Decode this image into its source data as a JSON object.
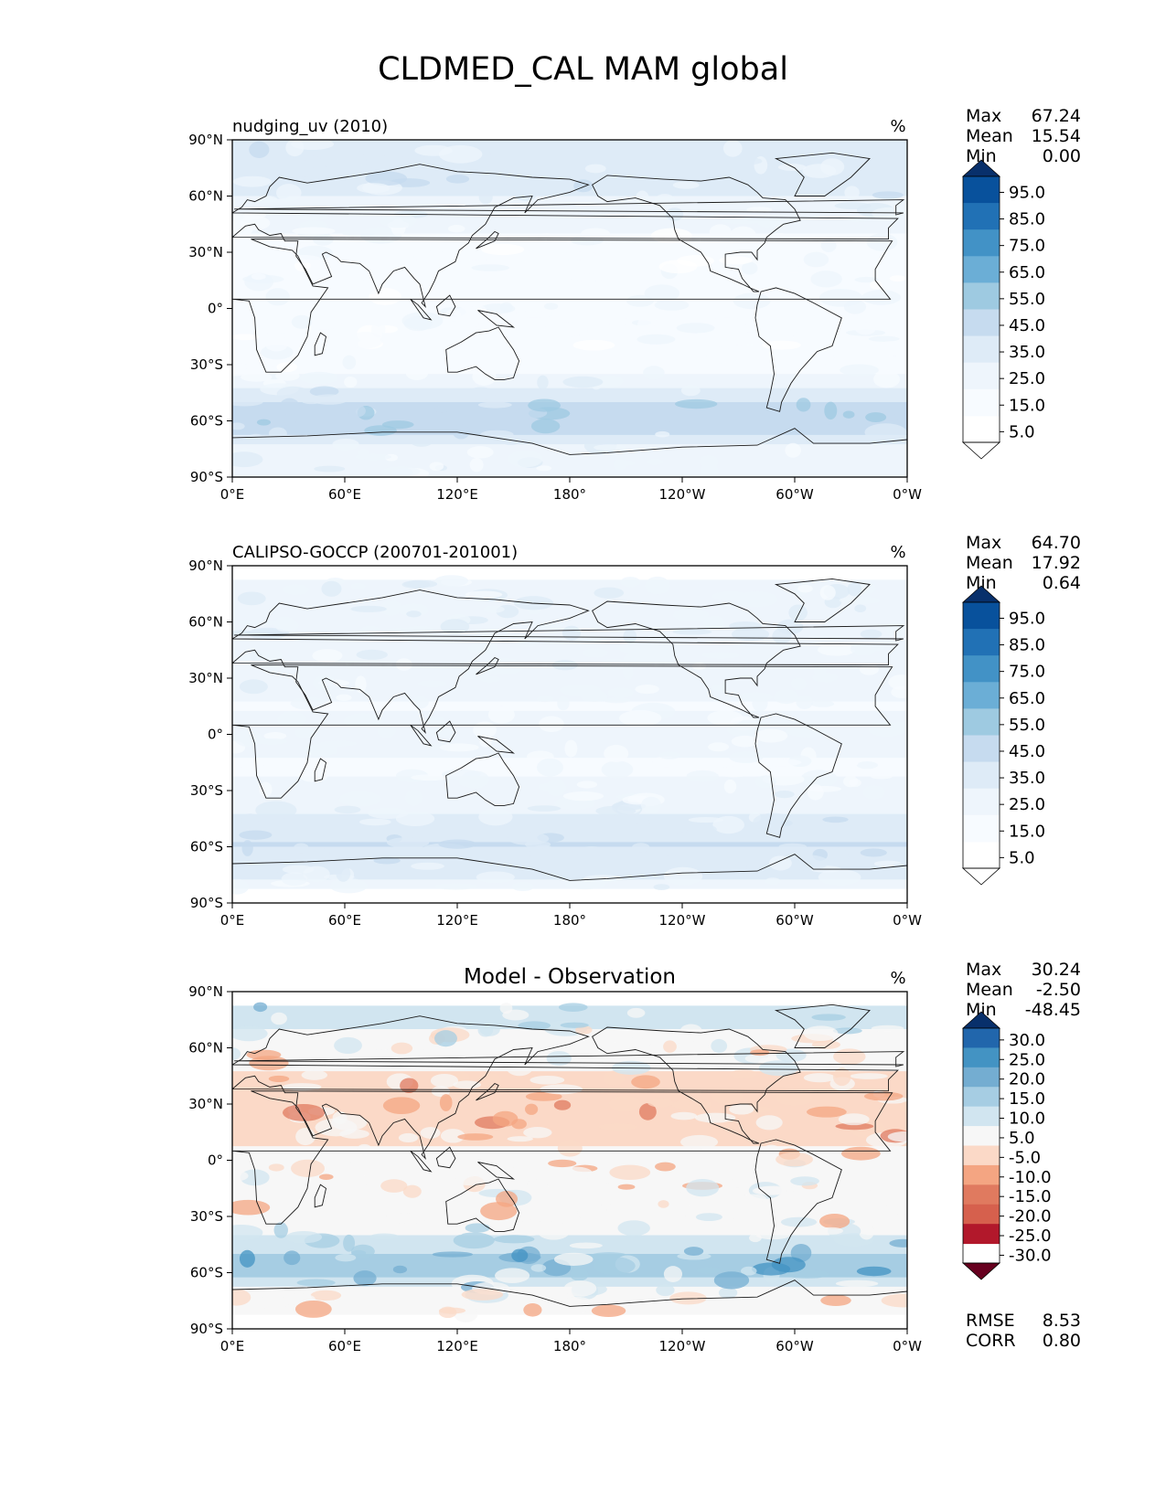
{
  "figure": {
    "title": "CLDMED_CAL MAM global"
  },
  "chart_data": [
    {
      "type": "heatmap",
      "title": "nudging_uv (2010)",
      "units": "%",
      "xlabel": "",
      "ylabel": "",
      "x_tick_labels": [
        "0°E",
        "60°E",
        "120°E",
        "180°",
        "120°W",
        "60°W",
        "0°W"
      ],
      "y_tick_labels": [
        "90°N",
        "60°N",
        "30°N",
        "0°",
        "30°S",
        "60°S",
        "90°S"
      ],
      "xlim": [
        0,
        360
      ],
      "ylim": [
        -90,
        90
      ],
      "stats": [
        {
          "label": "Max",
          "value": "67.24"
        },
        {
          "label": "Mean",
          "value": "15.54"
        },
        {
          "label": "Min",
          "value": "0.00"
        }
      ],
      "colorbar": {
        "levels": [
          "95.0",
          "85.0",
          "75.0",
          "65.0",
          "55.0",
          "45.0",
          "35.0",
          "25.0",
          "15.0",
          "5.0"
        ],
        "colors": [
          "#08306b",
          "#08519c",
          "#2171b5",
          "#4292c6",
          "#6baed6",
          "#9ecae1",
          "#c6dbef",
          "#deebf7",
          "#eef5fc",
          "#f7fbff",
          "#ffffff"
        ]
      },
      "field_profile": [
        {
          "lat": 90,
          "value": 25
        },
        {
          "lat": 75,
          "value": 30
        },
        {
          "lat": 60,
          "value": 25
        },
        {
          "lat": 45,
          "value": 18
        },
        {
          "lat": 30,
          "value": 8
        },
        {
          "lat": 15,
          "value": 10
        },
        {
          "lat": 0,
          "value": 15
        },
        {
          "lat": -15,
          "value": 10
        },
        {
          "lat": -30,
          "value": 9
        },
        {
          "lat": -45,
          "value": 28
        },
        {
          "lat": -55,
          "value": 45
        },
        {
          "lat": -65,
          "value": 38
        },
        {
          "lat": -75,
          "value": 20
        },
        {
          "lat": -90,
          "value": 22
        }
      ]
    },
    {
      "type": "heatmap",
      "title": "CALIPSO-GOCCP (200701-201001)",
      "units": "%",
      "xlabel": "",
      "ylabel": "",
      "x_tick_labels": [
        "0°E",
        "60°E",
        "120°E",
        "180°",
        "120°W",
        "60°W",
        "0°W"
      ],
      "y_tick_labels": [
        "90°N",
        "60°N",
        "30°N",
        "0°",
        "30°S",
        "60°S",
        "90°S"
      ],
      "xlim": [
        0,
        360
      ],
      "ylim": [
        -90,
        90
      ],
      "data_lat_range": [
        -82,
        82
      ],
      "stats": [
        {
          "label": "Max",
          "value": "64.70"
        },
        {
          "label": "Mean",
          "value": "17.92"
        },
        {
          "label": "Min",
          "value": "0.64"
        }
      ],
      "colorbar": {
        "levels": [
          "95.0",
          "85.0",
          "75.0",
          "65.0",
          "55.0",
          "45.0",
          "35.0",
          "25.0",
          "15.0",
          "5.0"
        ],
        "colors": [
          "#08306b",
          "#08519c",
          "#2171b5",
          "#4292c6",
          "#6baed6",
          "#9ecae1",
          "#c6dbef",
          "#deebf7",
          "#eef5fc",
          "#f7fbff",
          "#ffffff"
        ]
      },
      "field_profile": [
        {
          "lat": 82,
          "value": 22
        },
        {
          "lat": 60,
          "value": 25
        },
        {
          "lat": 45,
          "value": 22
        },
        {
          "lat": 30,
          "value": 20
        },
        {
          "lat": 15,
          "value": 14
        },
        {
          "lat": 0,
          "value": 18
        },
        {
          "lat": -15,
          "value": 14
        },
        {
          "lat": -30,
          "value": 16
        },
        {
          "lat": -45,
          "value": 26
        },
        {
          "lat": -58,
          "value": 36
        },
        {
          "lat": -70,
          "value": 30
        },
        {
          "lat": -82,
          "value": 22
        }
      ]
    },
    {
      "type": "heatmap",
      "title": "Model - Observation",
      "units": "%",
      "xlabel": "",
      "ylabel": "",
      "x_tick_labels": [
        "0°E",
        "60°E",
        "120°E",
        "180°",
        "120°W",
        "60°W",
        "0°W"
      ],
      "y_tick_labels": [
        "90°N",
        "60°N",
        "30°N",
        "0°",
        "30°S",
        "60°S",
        "90°S"
      ],
      "xlim": [
        0,
        360
      ],
      "ylim": [
        -90,
        90
      ],
      "data_lat_range": [
        -82,
        82
      ],
      "stats": [
        {
          "label": "Max",
          "value": "30.24"
        },
        {
          "label": "Mean",
          "value": "-2.50"
        },
        {
          "label": "Min",
          "value": "-48.45"
        }
      ],
      "extra_stats": [
        {
          "label": "RMSE",
          "value": "8.53"
        },
        {
          "label": "CORR",
          "value": "0.80"
        }
      ],
      "colorbar": {
        "levels": [
          "30.0",
          "25.0",
          "20.0",
          "15.0",
          "10.0",
          "5.0",
          "-5.0",
          "-10.0",
          "-15.0",
          "-20.0",
          "-25.0",
          "-30.0"
        ],
        "colors": [
          "#08306b",
          "#2166ac",
          "#4393c3",
          "#74add1",
          "#a6cde3",
          "#d1e5f0",
          "#f7f7f7",
          "#fbd9c7",
          "#f4a582",
          "#e07a5f",
          "#d6604d",
          "#b2182b",
          "#67001f"
        ]
      },
      "field_profile": [
        {
          "lat": 82,
          "value": 8
        },
        {
          "lat": 70,
          "value": 5
        },
        {
          "lat": 45,
          "value": -6
        },
        {
          "lat": 30,
          "value": -9
        },
        {
          "lat": 15,
          "value": -6
        },
        {
          "lat": 0,
          "value": -4
        },
        {
          "lat": -15,
          "value": -3
        },
        {
          "lat": -30,
          "value": -2
        },
        {
          "lat": -45,
          "value": 8
        },
        {
          "lat": -58,
          "value": 14
        },
        {
          "lat": -68,
          "value": 6
        },
        {
          "lat": -75,
          "value": -4
        },
        {
          "lat": -82,
          "value": -2
        }
      ]
    }
  ]
}
